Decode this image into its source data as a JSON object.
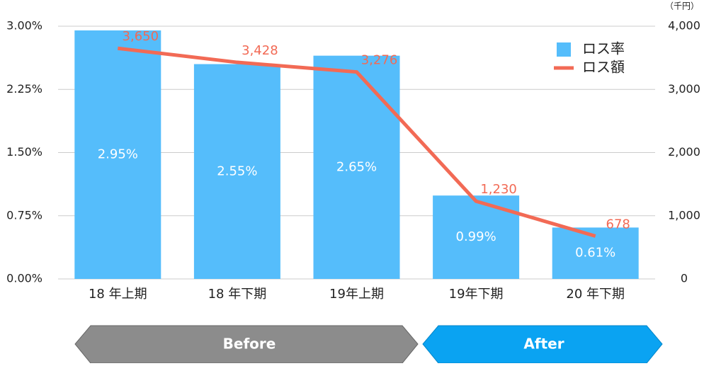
{
  "chart_data": {
    "type": "bar_line",
    "categories": [
      "18 年上期",
      "18 年下期",
      "19年上期",
      "19年下期",
      "20 年下期"
    ],
    "series": [
      {
        "name": "ロス率",
        "type": "bar",
        "color": "#55bdfb",
        "values": [
          2.95,
          2.55,
          2.65,
          0.99,
          0.61
        ],
        "value_labels": [
          "2.95%",
          "2.55%",
          "2.65%",
          "0.99%",
          "0.61%"
        ]
      },
      {
        "name": "ロス額",
        "type": "line",
        "axis": "y2",
        "color": "#f26a55",
        "values": [
          3650,
          3428,
          3276,
          1230,
          678
        ],
        "value_labels": [
          "3,650",
          "3,428",
          "3,276",
          "1,230",
          "678"
        ]
      }
    ],
    "ylim": [
      0,
      3
    ],
    "yticks": [
      {
        "value": 0,
        "label": "0.00%"
      },
      {
        "value": 0.75,
        "label": "0.75%"
      },
      {
        "value": 1.5,
        "label": "1.50%"
      },
      {
        "value": 2.25,
        "label": "2.25%"
      },
      {
        "value": 3,
        "label": "3.00%"
      }
    ],
    "y2lim": [
      0,
      4000
    ],
    "y2ticks": [
      0,
      {
        "value": 1000,
        "label": "1,000"
      },
      {
        "value": 2000,
        "label": "2,000"
      },
      {
        "value": 3000,
        "label": "3,000"
      },
      {
        "value": 4000,
        "label": "4,000"
      }
    ],
    "y2_label": "（千円）",
    "grid": true,
    "legend": "top-right",
    "annotations": [
      "Before",
      "After"
    ]
  }
}
